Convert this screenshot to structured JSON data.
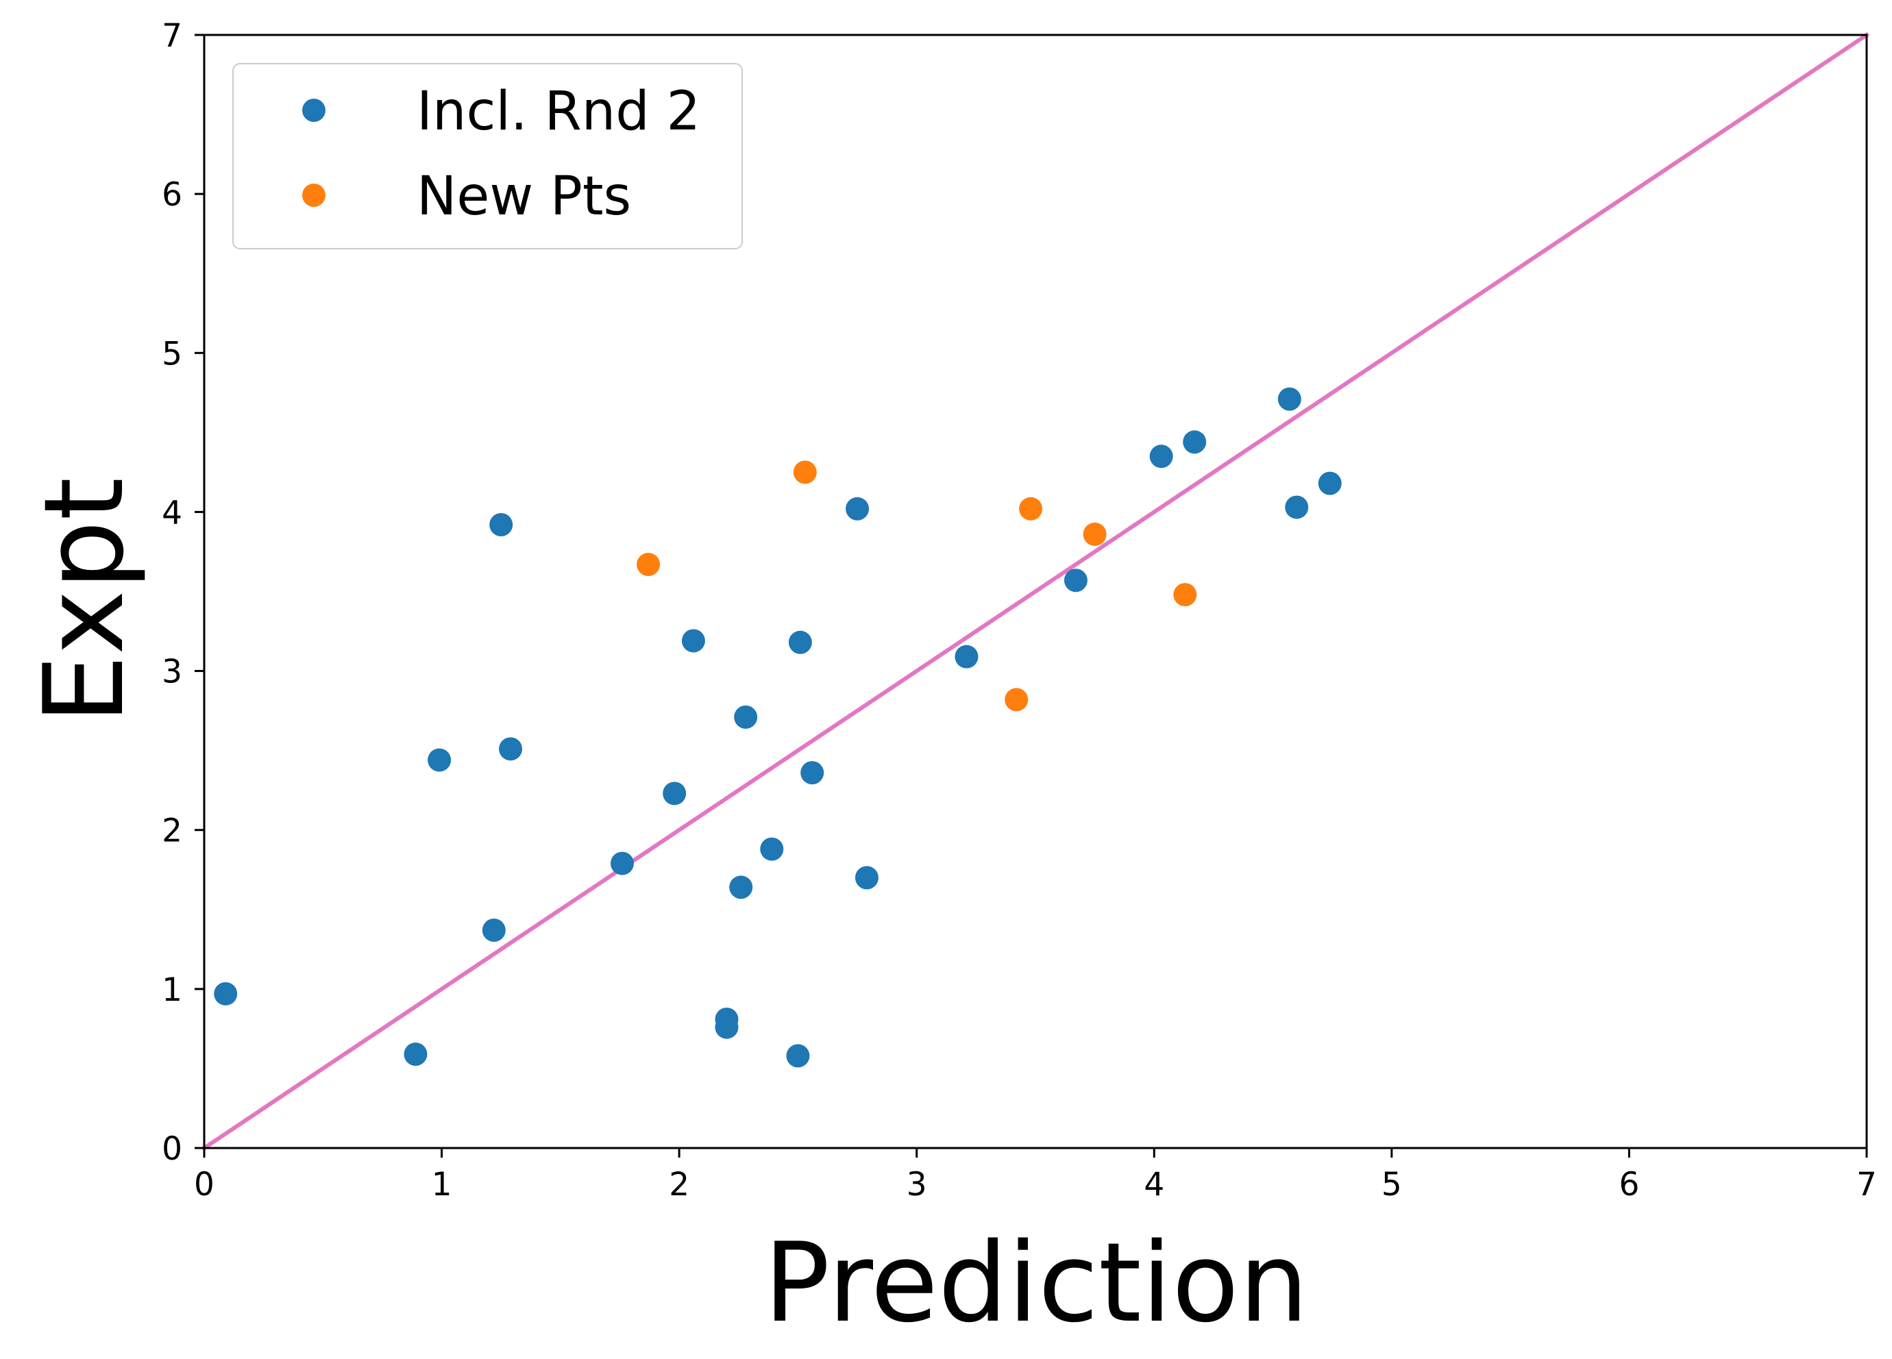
{
  "chart_data": {
    "type": "scatter",
    "xlabel": "Prediction",
    "ylabel": "Expt",
    "xlim": [
      0,
      7
    ],
    "ylim": [
      0,
      7
    ],
    "xticks": [
      "0",
      "1",
      "2",
      "3",
      "4",
      "5",
      "6",
      "7"
    ],
    "yticks": [
      "0",
      "1",
      "2",
      "3",
      "4",
      "5",
      "6",
      "7"
    ],
    "grid": false,
    "legend": "top-left",
    "series": [
      {
        "name": "Incl. Rnd 2",
        "color": "#1f77b4",
        "points": [
          [
            0.09,
            0.97
          ],
          [
            0.89,
            0.59
          ],
          [
            0.99,
            2.44
          ],
          [
            1.22,
            1.37
          ],
          [
            1.25,
            3.92
          ],
          [
            1.29,
            2.51
          ],
          [
            1.76,
            1.79
          ],
          [
            1.98,
            2.23
          ],
          [
            2.06,
            3.19
          ],
          [
            2.2,
            0.81
          ],
          [
            2.2,
            0.76
          ],
          [
            2.26,
            1.64
          ],
          [
            2.28,
            2.71
          ],
          [
            2.39,
            1.88
          ],
          [
            2.5,
            0.58
          ],
          [
            2.51,
            3.18
          ],
          [
            2.56,
            2.36
          ],
          [
            2.75,
            4.02
          ],
          [
            2.79,
            1.7
          ],
          [
            3.21,
            3.09
          ],
          [
            3.67,
            3.57
          ],
          [
            4.03,
            4.35
          ],
          [
            4.17,
            4.44
          ],
          [
            4.57,
            4.71
          ],
          [
            4.6,
            4.03
          ],
          [
            4.74,
            4.18
          ]
        ]
      },
      {
        "name": "New Pts",
        "color": "#ff7f0e",
        "points": [
          [
            1.87,
            3.67
          ],
          [
            2.53,
            4.25
          ],
          [
            3.42,
            2.82
          ],
          [
            3.48,
            4.02
          ],
          [
            3.75,
            3.86
          ],
          [
            4.13,
            3.48
          ]
        ]
      }
    ],
    "reference_line": {
      "from": [
        0,
        0
      ],
      "to": [
        7,
        7
      ],
      "color": "#e377c2"
    }
  }
}
